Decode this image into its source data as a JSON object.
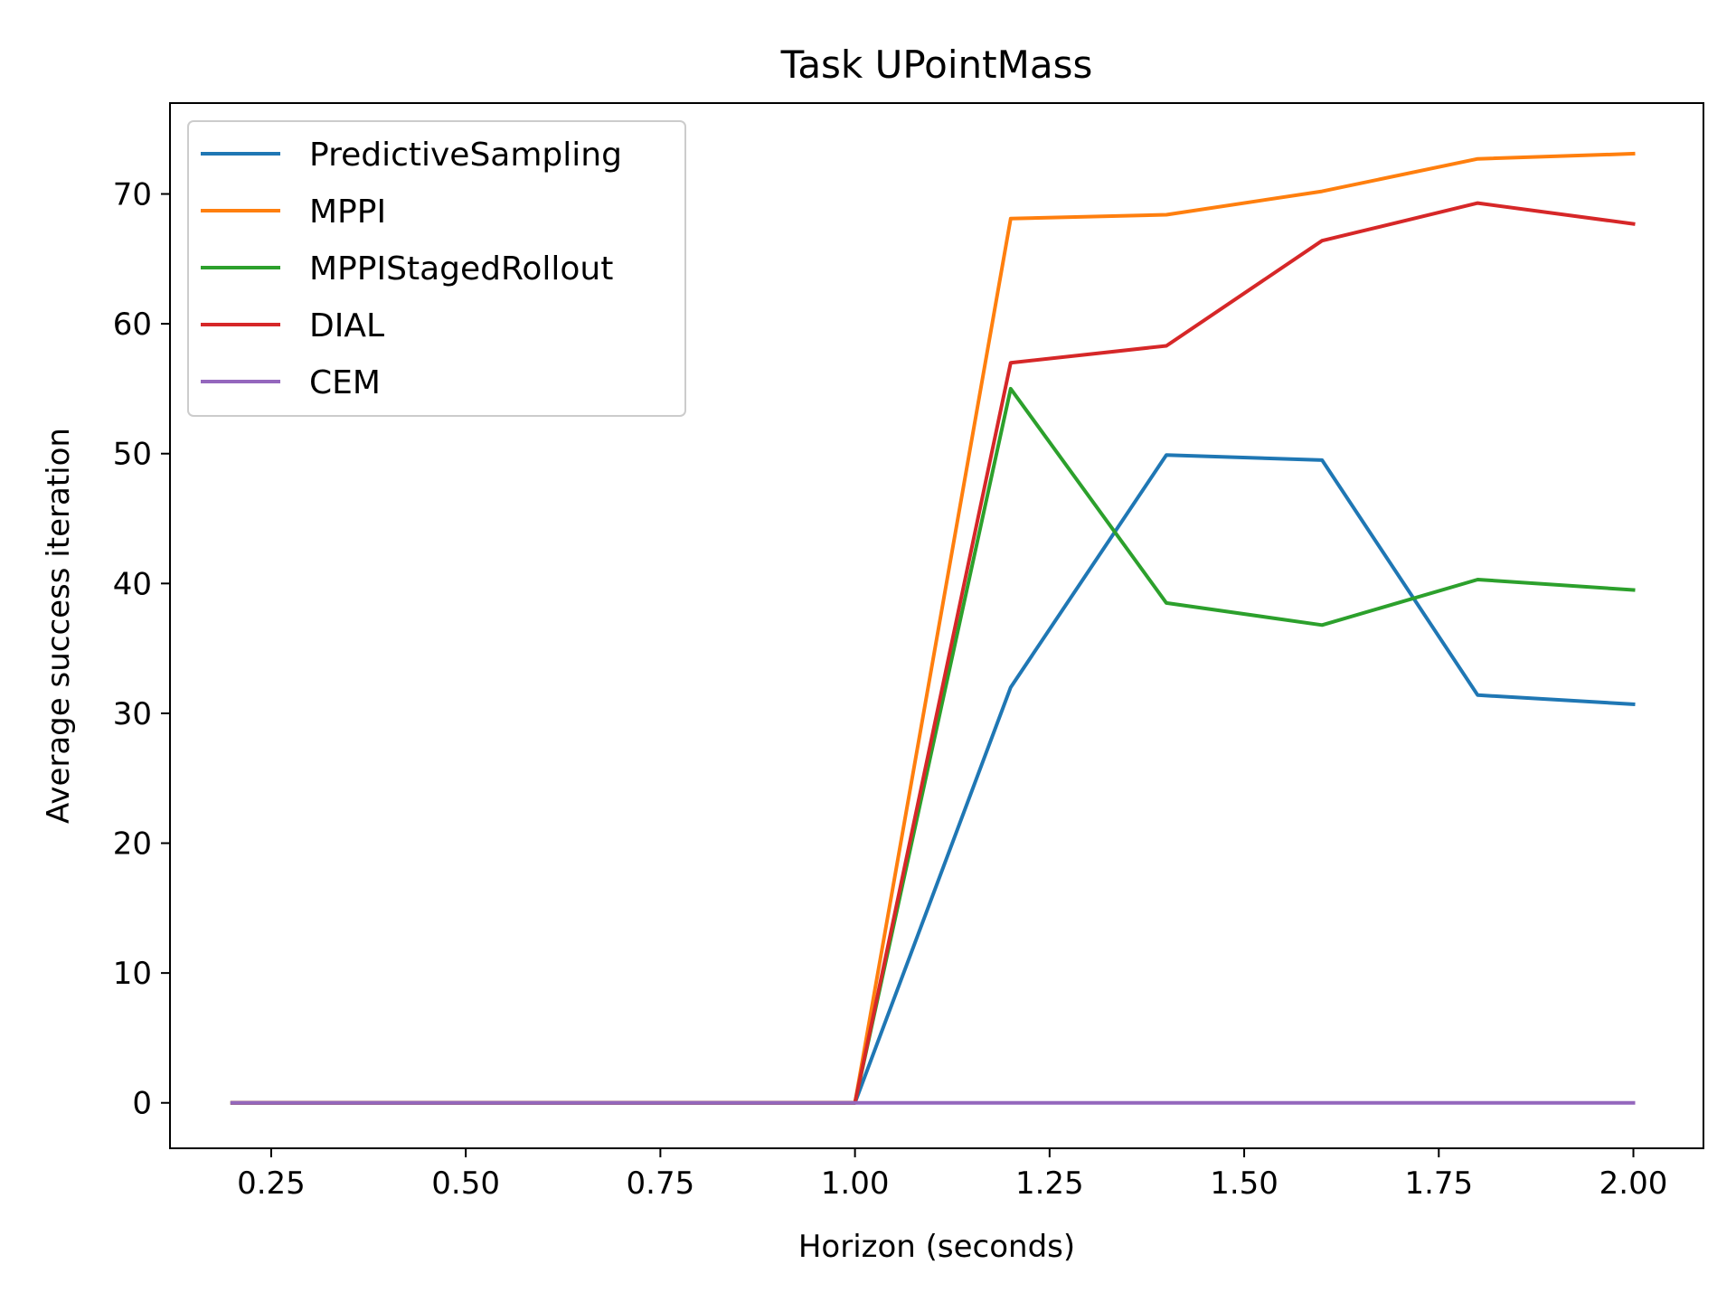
{
  "chart_data": {
    "type": "line",
    "title": "Task UPointMass",
    "xlabel": "Horizon (seconds)",
    "ylabel": "Average success iteration",
    "xlim": [
      0.12,
      2.09
    ],
    "ylim": [
      -3.5,
      77
    ],
    "xticks": [
      0.25,
      0.5,
      0.75,
      1.0,
      1.25,
      1.5,
      1.75,
      2.0
    ],
    "xtick_labels": [
      "0.25",
      "0.50",
      "0.75",
      "1.00",
      "1.25",
      "1.50",
      "1.75",
      "2.00"
    ],
    "yticks": [
      0,
      10,
      20,
      30,
      40,
      50,
      60,
      70
    ],
    "ytick_labels": [
      "0",
      "10",
      "20",
      "30",
      "40",
      "50",
      "60",
      "70"
    ],
    "grid": false,
    "legend_position": "top-left",
    "x": [
      0.2,
      0.4,
      0.6,
      0.8,
      1.0,
      1.2,
      1.4,
      1.6,
      1.8,
      2.0
    ],
    "series": [
      {
        "name": "PredictiveSampling",
        "color": "#1f77b4",
        "values": [
          0,
          0,
          0,
          0,
          0,
          32.0,
          49.9,
          49.5,
          31.4,
          30.7
        ]
      },
      {
        "name": "MPPI",
        "color": "#ff7f0e",
        "values": [
          0,
          0,
          0,
          0,
          0,
          68.1,
          68.4,
          70.2,
          72.7,
          73.1
        ]
      },
      {
        "name": "MPPIStagedRollout",
        "color": "#2ca02c",
        "values": [
          0,
          0,
          0,
          0,
          0,
          55.0,
          38.5,
          36.8,
          40.3,
          39.5
        ]
      },
      {
        "name": "DIAL",
        "color": "#d62728",
        "values": [
          0,
          0,
          0,
          0,
          0,
          57.0,
          58.3,
          66.4,
          69.3,
          67.7
        ]
      },
      {
        "name": "CEM",
        "color": "#9467bd",
        "values": [
          0,
          0,
          0,
          0,
          0,
          0,
          0,
          0,
          0,
          0
        ]
      }
    ]
  }
}
